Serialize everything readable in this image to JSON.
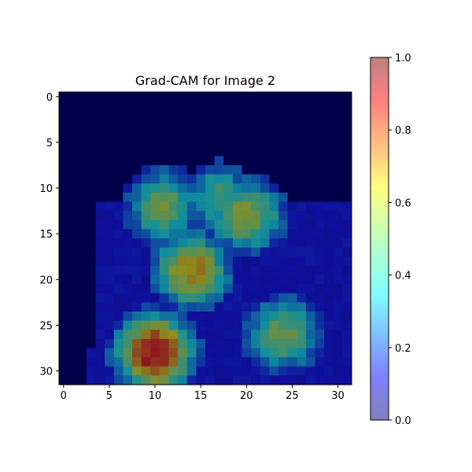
{
  "chart_data": {
    "type": "heatmap",
    "title": "Grad-CAM for Image 2",
    "xlabel": "",
    "ylabel": "",
    "grid_size": [
      32,
      32
    ],
    "xlim": [
      -0.5,
      31.5
    ],
    "ylim": [
      31.5,
      -0.5
    ],
    "x_ticks": [
      0,
      5,
      10,
      15,
      20,
      25,
      30
    ],
    "y_ticks": [
      0,
      5,
      10,
      15,
      20,
      25,
      30
    ],
    "grid": false,
    "colormap": "jet",
    "alpha": 0.5,
    "colorbar": {
      "min": 0.0,
      "max": 1.0,
      "ticks": [
        "0.0",
        "0.2",
        "0.4",
        "0.6",
        "0.8",
        "1.0"
      ]
    },
    "background_color": "#00004a",
    "hotspots": [
      {
        "label": "upper-left object",
        "x": 11,
        "y": 12,
        "value": 0.55
      },
      {
        "label": "upper-middle",
        "x": 17,
        "y": 11,
        "value": 0.45
      },
      {
        "label": "right-upper",
        "x": 20,
        "y": 13,
        "value": 0.6
      },
      {
        "label": "center column",
        "x": 14,
        "y": 19,
        "value": 0.7
      },
      {
        "label": "lower-left peak",
        "x": 10,
        "y": 28,
        "value": 0.9
      },
      {
        "label": "lower-right block",
        "x": 24,
        "y": 26,
        "value": 0.55
      }
    ]
  }
}
